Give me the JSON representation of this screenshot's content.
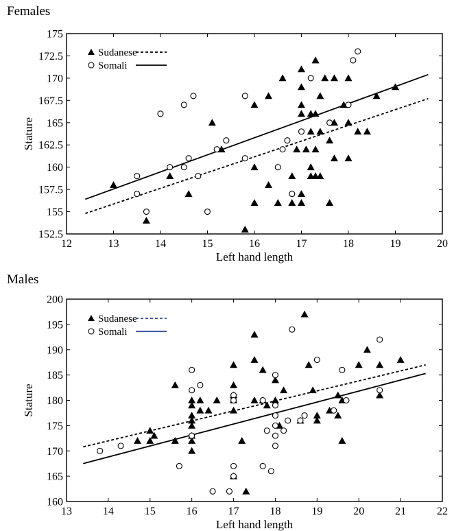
{
  "chart_data": [
    {
      "type": "scatter",
      "title": "Females",
      "xlabel": "Left hand length",
      "ylabel": "Stature",
      "xlim": [
        12,
        20
      ],
      "ylim": [
        152.5,
        175
      ],
      "xticks": [
        12,
        13,
        14,
        15,
        16,
        17,
        18,
        19,
        20
      ],
      "xtick_labels": [
        "12",
        "13",
        "14",
        "15",
        "16",
        "17",
        "18",
        "19",
        "20"
      ],
      "yticks": [
        152.5,
        155,
        157.5,
        160,
        162.5,
        165,
        167.5,
        170,
        172.5,
        175
      ],
      "ytick_labels": [
        "152.5",
        "155",
        "157.5",
        "160",
        "162.5",
        "165",
        "167.5",
        "170",
        "172.5",
        "175"
      ],
      "legend_position": "top-left",
      "series": [
        {
          "name": "Sudanese",
          "marker": "triangle",
          "line_style": "dashed",
          "line_color": "#000000",
          "points": [
            [
              13,
              158
            ],
            [
              13.7,
              154
            ],
            [
              14.2,
              159
            ],
            [
              14.6,
              157
            ],
            [
              15.1,
              165
            ],
            [
              15.3,
              162
            ],
            [
              15.8,
              153
            ],
            [
              16,
              167
            ],
            [
              16,
              160
            ],
            [
              16,
              156
            ],
            [
              16.3,
              168
            ],
            [
              16.3,
              158
            ],
            [
              16.5,
              156
            ],
            [
              16.6,
              170
            ],
            [
              16.8,
              159
            ],
            [
              16.8,
              156
            ],
            [
              16.9,
              162
            ],
            [
              17,
              171
            ],
            [
              17,
              169
            ],
            [
              17,
              167
            ],
            [
              17,
              166
            ],
            [
              17,
              157
            ],
            [
              17,
              156
            ],
            [
              17.1,
              162
            ],
            [
              17.2,
              166
            ],
            [
              17.2,
              164
            ],
            [
              17.2,
              160
            ],
            [
              17.2,
              159
            ],
            [
              17.3,
              172
            ],
            [
              17.3,
              166
            ],
            [
              17.3,
              162
            ],
            [
              17.3,
              159
            ],
            [
              17.4,
              168
            ],
            [
              17.4,
              164
            ],
            [
              17.4,
              159
            ],
            [
              17.5,
              170
            ],
            [
              17.6,
              163
            ],
            [
              17.6,
              156
            ],
            [
              17.7,
              170
            ],
            [
              17.7,
              165
            ],
            [
              17.7,
              161
            ],
            [
              17.9,
              167
            ],
            [
              18,
              170
            ],
            [
              18,
              165
            ],
            [
              18,
              161
            ],
            [
              18.2,
              164
            ],
            [
              18.4,
              164
            ],
            [
              18.6,
              168
            ],
            [
              19,
              169
            ]
          ],
          "fit_line": {
            "x": [
              12.4,
              19.7
            ],
            "y": [
              154.8,
              167.7
            ]
          }
        },
        {
          "name": "Somali",
          "marker": "circle",
          "line_style": "solid",
          "line_color": "#000000",
          "points": [
            [
              13.5,
              159
            ],
            [
              13.5,
              157
            ],
            [
              13.7,
              155
            ],
            [
              14,
              166
            ],
            [
              14.2,
              160
            ],
            [
              14.5,
              167
            ],
            [
              14.5,
              160
            ],
            [
              14.6,
              161
            ],
            [
              14.7,
              168
            ],
            [
              14.8,
              159
            ],
            [
              15,
              155
            ],
            [
              15.2,
              162
            ],
            [
              15.4,
              163
            ],
            [
              15.8,
              168
            ],
            [
              15.8,
              161
            ],
            [
              16.5,
              160
            ],
            [
              16.6,
              162
            ],
            [
              16.7,
              163
            ],
            [
              16.8,
              157
            ],
            [
              17,
              164
            ],
            [
              17.2,
              170
            ],
            [
              17.6,
              165
            ],
            [
              18,
              167
            ],
            [
              18.1,
              172
            ],
            [
              18.2,
              173
            ]
          ],
          "fit_line": {
            "x": [
              12.4,
              19.7
            ],
            "y": [
              156.4,
              170.4
            ]
          }
        }
      ]
    },
    {
      "type": "scatter",
      "title": "Males",
      "xlabel": "Left hand length",
      "ylabel": "Stature",
      "xlim": [
        13,
        22
      ],
      "ylim": [
        160,
        200
      ],
      "xticks": [
        13,
        14,
        15,
        16,
        17,
        18,
        19,
        20,
        21,
        22
      ],
      "xtick_labels": [
        "13",
        "14",
        "15",
        "16",
        "17",
        "18",
        "19",
        "20",
        "21",
        "22"
      ],
      "yticks": [
        160,
        165,
        170,
        175,
        180,
        185,
        190,
        195,
        200
      ],
      "ytick_labels": [
        "160",
        "165",
        "170",
        "175",
        "180",
        "185",
        "190",
        "195",
        "200"
      ],
      "legend_position": "top-left",
      "series": [
        {
          "name": "Sudanese",
          "marker": "triangle",
          "line_style": "dashed",
          "line_color": "#2b3f9a",
          "points": [
            [
              14.7,
              172
            ],
            [
              15,
              174
            ],
            [
              15,
              172
            ],
            [
              15.1,
              173
            ],
            [
              15.6,
              183
            ],
            [
              15.6,
              172
            ],
            [
              16,
              180
            ],
            [
              16,
              179
            ],
            [
              16,
              177
            ],
            [
              16,
              176
            ],
            [
              16,
              175
            ],
            [
              16,
              173
            ],
            [
              16,
              172
            ],
            [
              16,
              170
            ],
            [
              16.2,
              180
            ],
            [
              16.2,
              178
            ],
            [
              16.4,
              178
            ],
            [
              16.6,
              180
            ],
            [
              17,
              187
            ],
            [
              17,
              183
            ],
            [
              17,
              181
            ],
            [
              17,
              180
            ],
            [
              17,
              178
            ],
            [
              17,
              165
            ],
            [
              17.2,
              172
            ],
            [
              17.3,
              162
            ],
            [
              17.5,
              193
            ],
            [
              17.5,
              188
            ],
            [
              17.5,
              180
            ],
            [
              17.7,
              186
            ],
            [
              17.7,
              180
            ],
            [
              17.8,
              179
            ],
            [
              18,
              184
            ],
            [
              18,
              180
            ],
            [
              18.1,
              175
            ],
            [
              18.2,
              182
            ],
            [
              18.6,
              176
            ],
            [
              18.7,
              197
            ],
            [
              18.8,
              187
            ],
            [
              18.9,
              182
            ],
            [
              19,
              177
            ],
            [
              19,
              176
            ],
            [
              19.3,
              178
            ],
            [
              19.5,
              181
            ],
            [
              19.5,
              177
            ],
            [
              19.6,
              180
            ],
            [
              19.6,
              172
            ],
            [
              20,
              187
            ],
            [
              20.2,
              190
            ],
            [
              20.5,
              187
            ],
            [
              20.5,
              181
            ],
            [
              21,
              188
            ]
          ],
          "fit_line": {
            "x": [
              13.4,
              21.6
            ],
            "y": [
              170.8,
              187
            ]
          }
        },
        {
          "name": "Somali",
          "marker": "circle",
          "line_style": "solid",
          "line_color": "#2b3f9a",
          "points": [
            [
              13.8,
              170
            ],
            [
              14.3,
              171
            ],
            [
              15.7,
              167
            ],
            [
              16,
              186
            ],
            [
              16,
              182
            ],
            [
              16,
              173
            ],
            [
              16.2,
              183
            ],
            [
              16.5,
              162
            ],
            [
              16.9,
              162
            ],
            [
              17,
              181
            ],
            [
              17,
              180
            ],
            [
              17,
              167
            ],
            [
              17,
              165
            ],
            [
              17.7,
              180
            ],
            [
              17.7,
              167
            ],
            [
              17.8,
              174
            ],
            [
              17.9,
              166
            ],
            [
              18,
              185
            ],
            [
              18,
              179
            ],
            [
              18,
              177
            ],
            [
              18,
              175
            ],
            [
              18,
              173
            ],
            [
              18,
              171
            ],
            [
              18.2,
              174
            ],
            [
              18.3,
              176
            ],
            [
              18.4,
              194
            ],
            [
              18.6,
              176
            ],
            [
              18.7,
              177
            ],
            [
              19,
              188
            ],
            [
              19.4,
              178
            ],
            [
              19.6,
              186
            ],
            [
              19.7,
              180
            ],
            [
              20.5,
              192
            ],
            [
              20.5,
              182
            ]
          ],
          "fit_line": {
            "x": [
              13.4,
              21.6
            ],
            "y": [
              167.5,
              185.3
            ]
          }
        }
      ]
    }
  ]
}
